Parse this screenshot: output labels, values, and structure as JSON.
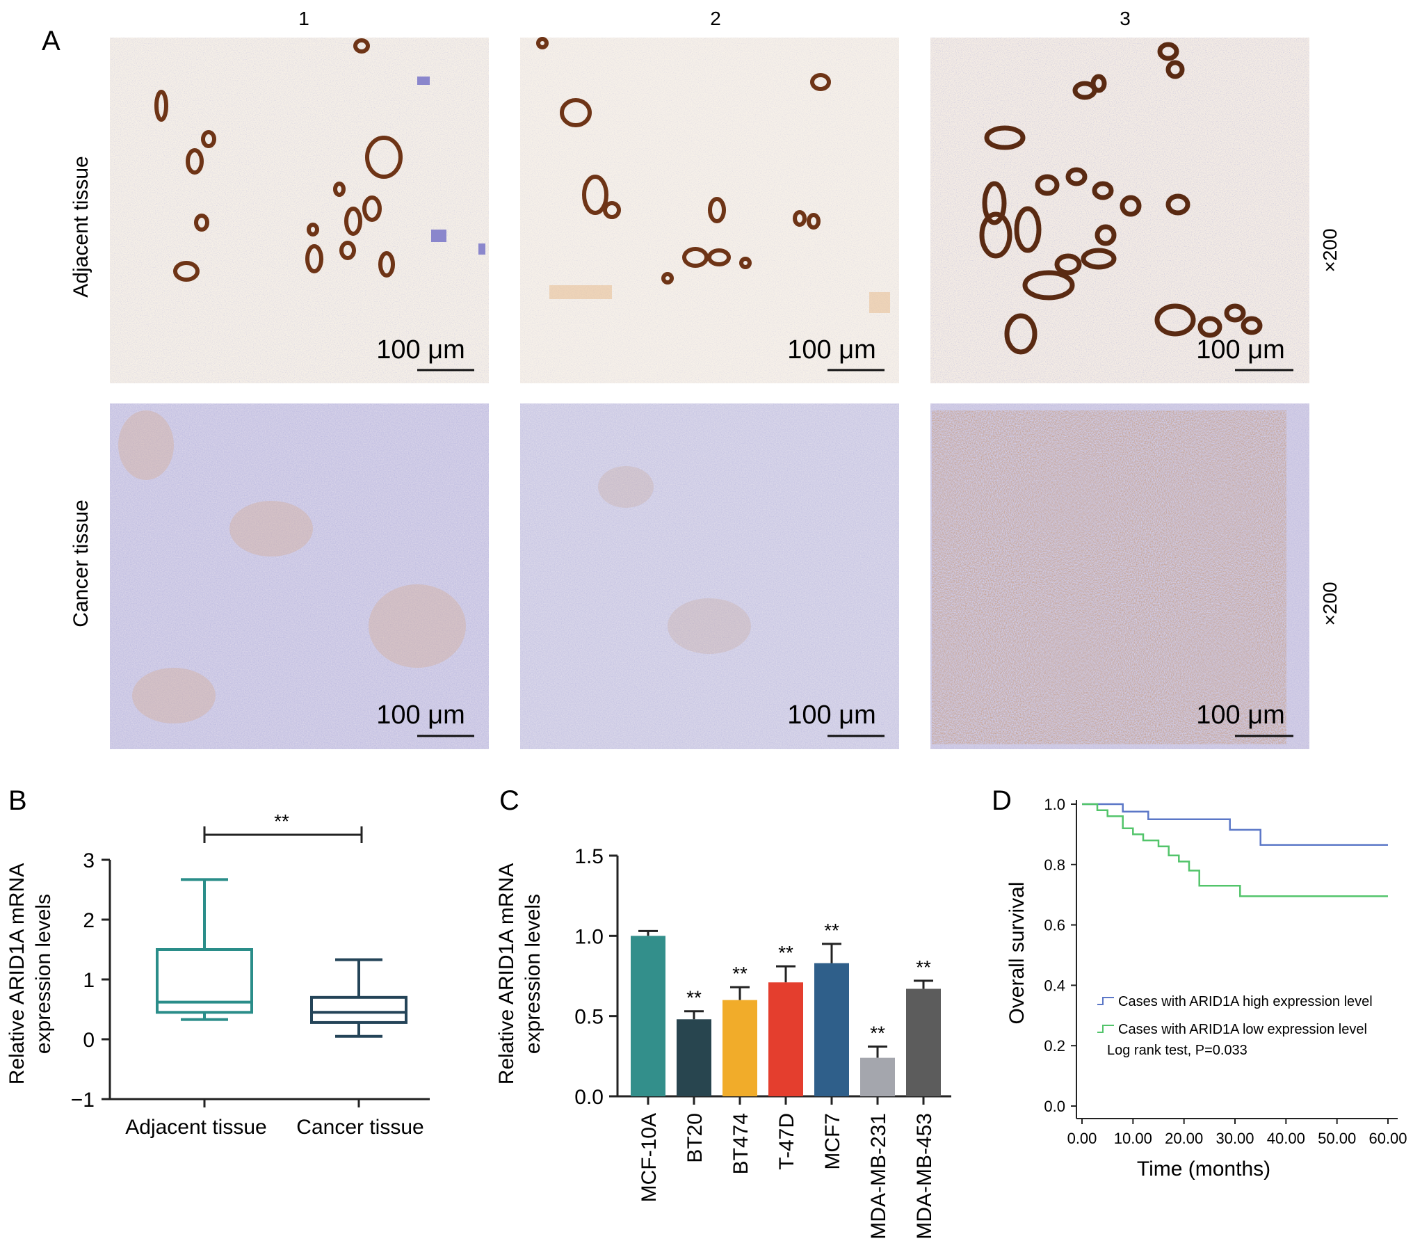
{
  "panel_a": {
    "letter": "A",
    "columns": [
      "1",
      "2",
      "3"
    ],
    "rows": [
      {
        "label": "Adjacent tissue",
        "magnification": "×200"
      },
      {
        "label": "Cancer tissue",
        "magnification": "×200"
      }
    ],
    "scale_bar": "100 μm",
    "colors": {
      "background_adjacent": "#f4eee6",
      "background_cancer": "#dcd9ec",
      "stain_brown": "#7a3b1c",
      "nuclei_blue": "#6a6ab8"
    }
  },
  "chart_data": [
    {
      "panel": "B",
      "type": "box",
      "ylabel": "Relative ARID1A mRNA expression levels",
      "ylabel_lines": [
        "Relative ARID1A mRNA",
        "expression levels"
      ],
      "ylim": [
        -1,
        3
      ],
      "yticks": [
        "3",
        "2",
        "1",
        "0",
        "−1"
      ],
      "ytick_values": [
        3,
        2,
        1,
        0,
        -1
      ],
      "categories": [
        "Adjacent tissue",
        "Cancer tissue"
      ],
      "boxes": [
        {
          "name": "Adjacent tissue",
          "min": 0.33,
          "q1": 0.45,
          "median": 0.62,
          "q3": 1.5,
          "max": 2.67,
          "color": "#2a8d89"
        },
        {
          "name": "Cancer tissue",
          "min": 0.05,
          "q1": 0.28,
          "median": 0.45,
          "q3": 0.7,
          "max": 1.33,
          "color": "#244458"
        }
      ],
      "significance": "**"
    },
    {
      "panel": "C",
      "type": "bar",
      "ylabel": "Relative ARID1A mRNA expression levels",
      "ylabel_lines": [
        "Relative ARID1A mRNA",
        "expression levels"
      ],
      "ylim": [
        0,
        1.5
      ],
      "yticks": [
        "1.5",
        "1.0",
        "0.5",
        "0.0"
      ],
      "ytick_values": [
        1.5,
        1.0,
        0.5,
        0.0
      ],
      "categories": [
        "MCF-10A",
        "BT20",
        "BT474",
        "T-47D",
        "MCF7",
        "MDA-MB-231",
        "MDA-MB-453"
      ],
      "values": [
        1.0,
        0.48,
        0.6,
        0.71,
        0.83,
        0.24,
        0.67
      ],
      "errors": [
        0.03,
        0.05,
        0.08,
        0.1,
        0.12,
        0.07,
        0.05
      ],
      "significance": [
        "",
        "**",
        "**",
        "**",
        "**",
        "**",
        "**"
      ],
      "colors": [
        "#338f8b",
        "#28454f",
        "#f1ac2a",
        "#e43e2e",
        "#2f5f8a",
        "#a4a6ad",
        "#5c5c5c"
      ]
    },
    {
      "panel": "D",
      "type": "line",
      "xlabel": "Time (months)",
      "ylabel": "Overall survival",
      "xlim": [
        0,
        60
      ],
      "ylim": [
        0,
        1.0
      ],
      "xticks": [
        "0.00",
        "10.00",
        "20.00",
        "30.00",
        "40.00",
        "50.00",
        "60.00"
      ],
      "xtick_values": [
        0,
        10,
        20,
        30,
        40,
        50,
        60
      ],
      "yticks": [
        "1.0",
        "0.8",
        "0.6",
        "0.4",
        "0.2",
        "0.0"
      ],
      "ytick_values": [
        1.0,
        0.8,
        0.6,
        0.4,
        0.2,
        0.0
      ],
      "series": [
        {
          "name": "Cases with ARID1A high expression level",
          "color": "#5b77c7",
          "x": [
            0,
            8,
            8,
            13,
            13,
            29,
            29,
            35,
            35,
            60
          ],
          "y": [
            1.0,
            1.0,
            0.975,
            0.975,
            0.95,
            0.95,
            0.915,
            0.915,
            0.865,
            0.865
          ]
        },
        {
          "name": "Cases with ARID1A low expression level",
          "color": "#52c46a",
          "x": [
            0,
            3,
            3,
            5,
            5,
            8,
            8,
            10,
            10,
            12,
            12,
            15,
            15,
            17,
            17,
            19,
            19,
            21,
            21,
            23,
            23,
            31,
            31,
            60
          ],
          "y": [
            1.0,
            1.0,
            0.98,
            0.98,
            0.96,
            0.96,
            0.92,
            0.92,
            0.9,
            0.9,
            0.88,
            0.88,
            0.86,
            0.86,
            0.83,
            0.83,
            0.81,
            0.81,
            0.78,
            0.78,
            0.73,
            0.73,
            0.695,
            0.695
          ]
        }
      ],
      "annotation": "Log rank test, P=0.033",
      "legend_position": "bottom-left"
    }
  ]
}
